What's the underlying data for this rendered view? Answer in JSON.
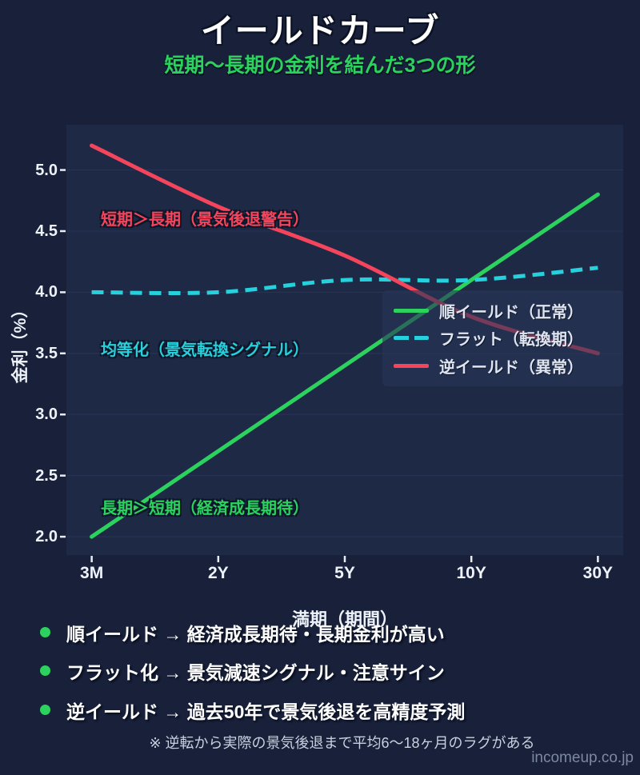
{
  "title": "イールドカーブ",
  "subtitle": "短期〜長期の金利を結んだ3つの形",
  "chart_data": {
    "type": "line",
    "categories": [
      "3M",
      "2Y",
      "5Y",
      "10Y",
      "30Y"
    ],
    "series": [
      {
        "name": "順イールド（正常）",
        "values": [
          2.0,
          2.7,
          3.4,
          4.1,
          4.8
        ],
        "color": "#2bd35e",
        "dash": false
      },
      {
        "name": "フラット（転換期）",
        "values": [
          4.0,
          4.0,
          4.1,
          4.1,
          4.2
        ],
        "color": "#26d0dc",
        "dash": true
      },
      {
        "name": "逆イールド（異常）",
        "values": [
          5.2,
          4.7,
          4.3,
          3.8,
          3.5
        ],
        "color": "#f4455c",
        "dash": false
      }
    ],
    "xlabel": "満期（期間）",
    "ylabel": "金利（%）",
    "yticks": [
      "2.0",
      "2.5",
      "3.0",
      "3.5",
      "4.0",
      "4.5",
      "5.0"
    ],
    "ylim": [
      1.85,
      5.37
    ],
    "grid": true,
    "legend_position": "center-right",
    "annotations": [
      {
        "text": "短期＞長期（景気後退警告）",
        "color": "#f4455c"
      },
      {
        "text": "均等化（景気転換シグナル）",
        "color": "#26d0dc"
      },
      {
        "text": "長期＞短期（経済成長期待）",
        "color": "#2bd35e"
      }
    ]
  },
  "takeaways": {
    "items": [
      {
        "text": "順イールド → 経済成長期待・長期金利が高い"
      },
      {
        "text": "フラット化 → 景気減速シグナル・注意サイン"
      },
      {
        "text": "逆イールド → 過去50年で景気後退を高精度予測"
      }
    ],
    "footnote": "※ 逆転から実際の景気後退まで平均6〜18ヶ月のラグがある"
  },
  "watermark": "incomeup.co.jp",
  "colors": {
    "background": "#18203a",
    "plot_background": "#1e2945",
    "grid": "#273254",
    "tick": "#e8edf5",
    "text": "#eef2f9",
    "green": "#2bd35e",
    "cyan": "#26d0dc",
    "red": "#f4455c",
    "legend_bg": "rgba(41,53,86,0.62)",
    "footnote": "#c9d1e0",
    "watermark": "#7d88a1"
  }
}
